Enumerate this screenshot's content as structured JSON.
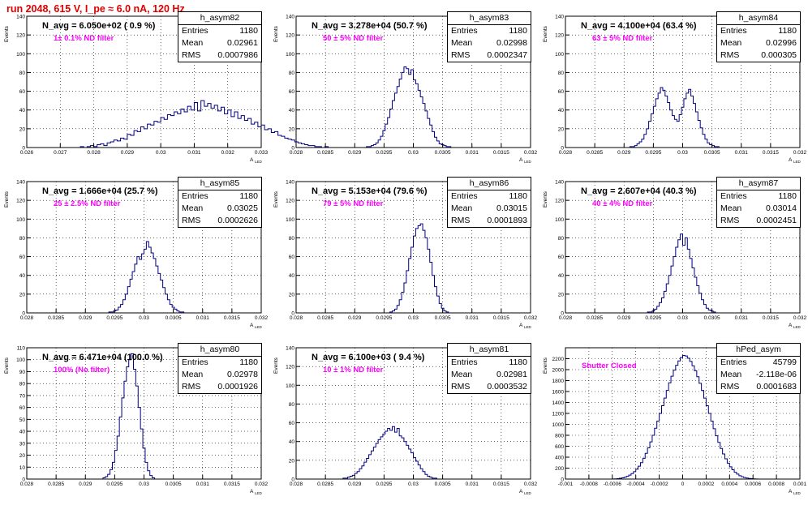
{
  "title": "run 2048,   615 V, I_pe ≈ 6.0 nA, 120 Hz",
  "axis": {
    "ylabel": "Events",
    "xlabel": "A",
    "xlabel_sub": "LED"
  },
  "colors": {
    "title": "#e00000",
    "filter": "#ff00ff",
    "hist": "#000080"
  },
  "chart_data": [
    {
      "type": "histogram",
      "hist_name": "h_asym82",
      "navg": "N_avg = 6.050e+02 ( 0.9 %)",
      "filter": "1± 0.1% ND filter",
      "stats": [
        [
          "Entries",
          "1180"
        ],
        [
          "Mean",
          "0.02961"
        ],
        [
          "RMS",
          "0.0007986"
        ]
      ],
      "xlim": [
        0.026,
        0.033
      ],
      "ylim": [
        0,
        140
      ],
      "xticks": [
        "0.026",
        "0.027",
        "0.028",
        "0.029",
        "0.03",
        "0.031",
        "0.032",
        "0.033"
      ],
      "yticks": [
        "0",
        "20",
        "40",
        "60",
        "80",
        "100",
        "120",
        "140"
      ],
      "bin_width": 0.0001,
      "x0": 0.0276,
      "values": [
        1,
        0,
        1,
        2,
        1,
        3,
        4,
        2,
        5,
        6,
        8,
        7,
        10,
        9,
        14,
        13,
        18,
        17,
        22,
        20,
        25,
        24,
        28,
        27,
        32,
        30,
        35,
        34,
        38,
        36,
        41,
        38,
        44,
        40,
        48,
        39,
        50,
        44,
        47,
        42,
        45,
        39,
        43,
        36,
        40,
        33,
        38,
        31,
        34,
        29,
        31,
        25,
        27,
        22,
        24,
        19,
        20,
        16,
        17,
        13,
        12,
        10,
        9,
        8,
        6,
        5,
        4,
        3,
        2,
        2,
        1,
        1,
        0,
        1
      ]
    },
    {
      "type": "histogram",
      "hist_name": "h_asym83",
      "navg": "N_avg = 3.278e+04 (50.7 %)",
      "filter": "50 ± 5% ND filter",
      "stats": [
        [
          "Entries",
          "1180"
        ],
        [
          "Mean",
          "0.02998"
        ],
        [
          "RMS",
          "0.0002347"
        ]
      ],
      "xlim": [
        0.028,
        0.032
      ],
      "ylim": [
        0,
        140
      ],
      "xticks": [
        "0.028",
        "0.0285",
        "0.029",
        "0.0295",
        "0.03",
        "0.0305",
        "0.031",
        "0.0315",
        "0.032"
      ],
      "yticks": [
        "0",
        "20",
        "40",
        "60",
        "80",
        "100",
        "120",
        "140"
      ],
      "bin_width": 4e-05,
      "x0": 0.0292,
      "values": [
        1,
        1,
        2,
        3,
        5,
        8,
        12,
        18,
        25,
        32,
        41,
        50,
        58,
        65,
        73,
        80,
        86,
        84,
        78,
        83,
        72,
        68,
        61,
        54,
        47,
        39,
        31,
        24,
        17,
        11,
        7,
        4,
        3,
        2,
        1,
        1
      ]
    },
    {
      "type": "histogram",
      "hist_name": "h_asym84",
      "navg": "N_avg = 4.100e+04 (63.4 %)",
      "filter": "63 ± 5% ND filter",
      "stats": [
        [
          "Entries",
          "1180"
        ],
        [
          "Mean",
          "0.02996"
        ],
        [
          "RMS",
          "0.000305"
        ]
      ],
      "xlim": [
        0.028,
        0.032
      ],
      "ylim": [
        0,
        140
      ],
      "xticks": [
        "0.028",
        "0.0285",
        "0.029",
        "0.0295",
        "0.03",
        "0.0305",
        "0.031",
        "0.0315",
        "0.032"
      ],
      "yticks": [
        "0",
        "20",
        "40",
        "60",
        "80",
        "100",
        "120",
        "140"
      ],
      "bin_width": 4e-05,
      "x0": 0.0291,
      "values": [
        1,
        1,
        2,
        4,
        6,
        9,
        14,
        20,
        28,
        36,
        44,
        52,
        58,
        64,
        61,
        55,
        48,
        40,
        34,
        30,
        28,
        35,
        43,
        52,
        58,
        62,
        55,
        47,
        38,
        29,
        21,
        14,
        9,
        5,
        3,
        2,
        1,
        1
      ]
    },
    {
      "type": "histogram",
      "hist_name": "h_asym85",
      "navg": "N_avg = 1.666e+04 (25.7 %)",
      "filter": "25 ± 2.5% ND filter",
      "stats": [
        [
          "Entries",
          "1180"
        ],
        [
          "Mean",
          "0.03025"
        ],
        [
          "RMS",
          "0.0002626"
        ]
      ],
      "xlim": [
        0.028,
        0.032
      ],
      "ylim": [
        0,
        140
      ],
      "xticks": [
        "0.028",
        "0.0285",
        "0.029",
        "0.0295",
        "0.03",
        "0.0305",
        "0.031",
        "0.0315",
        "0.032"
      ],
      "yticks": [
        "0",
        "20",
        "40",
        "60",
        "80",
        "100",
        "120",
        "140"
      ],
      "bin_width": 4e-05,
      "x0": 0.0294,
      "values": [
        1,
        1,
        2,
        3,
        6,
        9,
        14,
        20,
        28,
        36,
        44,
        52,
        60,
        57,
        63,
        68,
        76,
        70,
        64,
        58,
        50,
        42,
        35,
        27,
        20,
        14,
        9,
        6,
        4,
        2,
        1,
        1
      ]
    },
    {
      "type": "histogram",
      "hist_name": "h_asym86",
      "navg": "N_avg = 5.153e+04 (79.6 %)",
      "filter": "79 ± 5% ND filter",
      "stats": [
        [
          "Entries",
          "1180"
        ],
        [
          "Mean",
          "0.03015"
        ],
        [
          "RMS",
          "0.0001893"
        ]
      ],
      "xlim": [
        0.028,
        0.032
      ],
      "ylim": [
        0,
        140
      ],
      "xticks": [
        "0.028",
        "0.0285",
        "0.029",
        "0.0295",
        "0.03",
        "0.0305",
        "0.031",
        "0.0315",
        "0.032"
      ],
      "yticks": [
        "0",
        "20",
        "40",
        "60",
        "80",
        "100",
        "120",
        "140"
      ],
      "bin_width": 4e-05,
      "x0": 0.0296,
      "values": [
        1,
        2,
        4,
        8,
        14,
        22,
        32,
        45,
        58,
        70,
        82,
        90,
        93,
        95,
        88,
        80,
        68,
        54,
        40,
        28,
        18,
        10,
        5,
        2,
        1
      ]
    },
    {
      "type": "histogram",
      "hist_name": "h_asym87",
      "navg": "N_avg = 2.607e+04 (40.3 %)",
      "filter": "40 ± 4% ND filter",
      "stats": [
        [
          "Entries",
          "1180"
        ],
        [
          "Mean",
          "0.03014"
        ],
        [
          "RMS",
          "0.0002451"
        ]
      ],
      "xlim": [
        0.028,
        0.032
      ],
      "ylim": [
        0,
        140
      ],
      "xticks": [
        "0.028",
        "0.0285",
        "0.029",
        "0.0295",
        "0.03",
        "0.0305",
        "0.031",
        "0.0315",
        "0.032"
      ],
      "yticks": [
        "0",
        "20",
        "40",
        "60",
        "80",
        "100",
        "120",
        "140"
      ],
      "bin_width": 4e-05,
      "x0": 0.0294,
      "values": [
        1,
        1,
        2,
        4,
        7,
        11,
        16,
        23,
        31,
        40,
        50,
        60,
        70,
        78,
        84,
        72,
        80,
        68,
        58,
        48,
        38,
        29,
        21,
        14,
        9,
        5,
        3,
        2,
        1
      ]
    },
    {
      "type": "histogram",
      "hist_name": "h_asym80",
      "navg": "N_avg = 6.471e+04 (100.0 %)",
      "filter": "100% (No filter)",
      "stats": [
        [
          "Entries",
          "1180"
        ],
        [
          "Mean",
          "0.02978"
        ],
        [
          "RMS",
          "0.0001926"
        ]
      ],
      "xlim": [
        0.028,
        0.032
      ],
      "ylim": [
        0,
        110
      ],
      "xticks": [
        "0.028",
        "0.0285",
        "0.029",
        "0.0295",
        "0.03",
        "0.0305",
        "0.031",
        "0.0315",
        "0.032"
      ],
      "yticks": [
        "0",
        "10",
        "20",
        "30",
        "40",
        "50",
        "60",
        "70",
        "80",
        "90",
        "100",
        "110"
      ],
      "bin_width": 4e-05,
      "x0": 0.0293,
      "values": [
        1,
        2,
        4,
        8,
        14,
        24,
        36,
        52,
        68,
        82,
        94,
        100,
        105,
        92,
        78,
        60,
        42,
        26,
        14,
        7,
        3,
        1
      ]
    },
    {
      "type": "histogram",
      "hist_name": "h_asym81",
      "navg": "N_avg = 6.100e+03 ( 9.4 %)",
      "filter": "10 ± 1% ND filter",
      "stats": [
        [
          "Entries",
          "1180"
        ],
        [
          "Mean",
          "0.02981"
        ],
        [
          "RMS",
          "0.0003532"
        ]
      ],
      "xlim": [
        0.028,
        0.032
      ],
      "ylim": [
        0,
        140
      ],
      "xticks": [
        "0.028",
        "0.0285",
        "0.029",
        "0.0295",
        "0.03",
        "0.0305",
        "0.031",
        "0.0315",
        "0.032"
      ],
      "yticks": [
        "0",
        "20",
        "40",
        "60",
        "80",
        "100",
        "120",
        "140"
      ],
      "bin_width": 4e-05,
      "x0": 0.0288,
      "values": [
        1,
        1,
        2,
        3,
        4,
        6,
        8,
        11,
        14,
        18,
        22,
        26,
        30,
        34,
        38,
        42,
        45,
        48,
        51,
        54,
        52,
        56,
        50,
        54,
        46,
        44,
        40,
        36,
        32,
        28,
        23,
        19,
        15,
        11,
        8,
        5,
        3,
        2,
        1,
        1
      ]
    },
    {
      "type": "histogram",
      "hist_name": "hPed_asym",
      "navg": "",
      "filter": "Shutter Closed",
      "stats": [
        [
          "Entries",
          "45799"
        ],
        [
          "Mean",
          "-2.118e-06"
        ],
        [
          "RMS",
          "0.0001683"
        ]
      ],
      "xlim": [
        -0.001,
        0.001
      ],
      "ylim": [
        0,
        2400
      ],
      "xticks": [
        "-0.001",
        "-0.0008",
        "-0.0006",
        "-0.0004",
        "-0.0002",
        "0",
        "0.0002",
        "0.0004",
        "0.0006",
        "0.0008",
        "0.001"
      ],
      "yticks": [
        "0",
        "200",
        "400",
        "600",
        "800",
        "1000",
        "1200",
        "1400",
        "1600",
        "1800",
        "2000",
        "2200"
      ],
      "bin_width": 2e-05,
      "x0": -0.0006,
      "values": [
        2,
        4,
        8,
        14,
        22,
        34,
        50,
        72,
        100,
        135,
        180,
        235,
        300,
        380,
        470,
        570,
        680,
        800,
        930,
        1060,
        1200,
        1340,
        1480,
        1620,
        1760,
        1880,
        1990,
        2080,
        2160,
        2220,
        2260,
        2250,
        2210,
        2150,
        2070,
        1980,
        1870,
        1750,
        1620,
        1480,
        1340,
        1200,
        1060,
        920,
        790,
        670,
        560,
        460,
        370,
        290,
        225,
        170,
        125,
        90,
        62,
        42,
        28,
        18,
        11,
        7,
        4,
        2
      ]
    }
  ]
}
